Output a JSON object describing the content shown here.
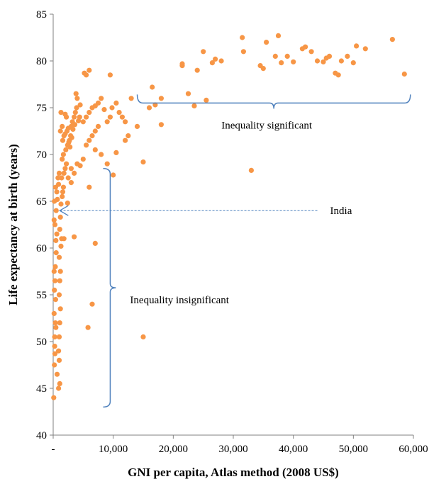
{
  "chart_data": {
    "type": "scatter",
    "xlabel": "GNI per capita, Atlas method (2008 US$)",
    "ylabel": "Life expectancy at birth (years)",
    "xlim": [
      0,
      60000
    ],
    "ylim": [
      40,
      85
    ],
    "x_ticks": [
      0,
      10000,
      20000,
      30000,
      40000,
      50000,
      60000
    ],
    "x_tick_labels": [
      "-",
      "10,000",
      "20,000",
      "30,000",
      "40,000",
      "50,000",
      "60,000"
    ],
    "y_ticks": [
      40,
      45,
      50,
      55,
      60,
      65,
      70,
      75,
      80,
      85
    ],
    "y_tick_labels": [
      "40",
      "45",
      "50",
      "55",
      "60",
      "65",
      "70",
      "75",
      "80",
      "85"
    ],
    "grid": false,
    "point_color": "#F79646",
    "annotation_color": "#4F81BD",
    "points": [
      [
        100,
        44
      ],
      [
        200,
        47.5
      ],
      [
        300,
        48.7
      ],
      [
        250,
        50.5
      ],
      [
        350,
        52
      ],
      [
        150,
        53
      ],
      [
        400,
        54.5
      ],
      [
        200,
        55.5
      ],
      [
        300,
        56.5
      ],
      [
        150,
        57.5
      ],
      [
        350,
        58
      ],
      [
        500,
        59.5
      ],
      [
        450,
        60.8
      ],
      [
        600,
        61.5
      ],
      [
        300,
        62.5
      ],
      [
        500,
        64
      ],
      [
        700,
        65.2
      ],
      [
        600,
        66
      ],
      [
        900,
        66.8
      ],
      [
        800,
        67.5
      ],
      [
        1000,
        68
      ],
      [
        200,
        65
      ],
      [
        400,
        66.5
      ],
      [
        150,
        63
      ],
      [
        250,
        49.5
      ],
      [
        450,
        51.5
      ],
      [
        650,
        46.5
      ],
      [
        900,
        45
      ],
      [
        1100,
        45.5
      ],
      [
        1000,
        48
      ],
      [
        900,
        49
      ],
      [
        1000,
        50.5
      ],
      [
        1100,
        52
      ],
      [
        1200,
        53.5
      ],
      [
        1000,
        55
      ],
      [
        1100,
        56.5
      ],
      [
        1200,
        57.5
      ],
      [
        1000,
        59
      ],
      [
        1300,
        60.2
      ],
      [
        1400,
        61
      ],
      [
        1100,
        62
      ],
      [
        1200,
        63.3
      ],
      [
        1300,
        64.7
      ],
      [
        1500,
        65.5
      ],
      [
        1600,
        66
      ],
      [
        1700,
        66.5
      ],
      [
        1400,
        67.5
      ],
      [
        1800,
        68
      ],
      [
        2000,
        68.5
      ],
      [
        2200,
        69
      ],
      [
        1500,
        69.5
      ],
      [
        1700,
        70
      ],
      [
        2100,
        70.5
      ],
      [
        2400,
        71
      ],
      [
        1600,
        71.5
      ],
      [
        1800,
        72
      ],
      [
        2000,
        72.2
      ],
      [
        2300,
        72.5
      ],
      [
        2500,
        72.8
      ],
      [
        2700,
        71.5
      ],
      [
        2900,
        72
      ],
      [
        3000,
        73
      ],
      [
        3200,
        73.5
      ],
      [
        3500,
        74
      ],
      [
        3700,
        74.5
      ],
      [
        3900,
        75
      ],
      [
        4000,
        76
      ],
      [
        3800,
        76.5
      ],
      [
        4500,
        75.3
      ],
      [
        2600,
        71.3
      ],
      [
        2800,
        70.8
      ],
      [
        3100,
        71.8
      ],
      [
        3300,
        72.7
      ],
      [
        3600,
        73.2
      ],
      [
        4200,
        73.6
      ],
      [
        4400,
        74
      ],
      [
        1200,
        72.5
      ],
      [
        1500,
        73
      ],
      [
        2200,
        74
      ],
      [
        2000,
        74.3
      ],
      [
        1300,
        74.5
      ],
      [
        2500,
        67.5
      ],
      [
        3000,
        68.5
      ],
      [
        3500,
        68
      ],
      [
        4000,
        69
      ],
      [
        4500,
        68.8
      ],
      [
        5000,
        69.5
      ],
      [
        3000,
        67
      ],
      [
        2400,
        64.8
      ],
      [
        1800,
        61
      ],
      [
        3500,
        61.2
      ],
      [
        7000,
        60.5
      ],
      [
        5500,
        71
      ],
      [
        6000,
        71.5
      ],
      [
        6500,
        72
      ],
      [
        7000,
        72.5
      ],
      [
        7500,
        73
      ],
      [
        5000,
        73.5
      ],
      [
        5500,
        74
      ],
      [
        6000,
        74.5
      ],
      [
        6500,
        75
      ],
      [
        7000,
        75.2
      ],
      [
        7500,
        75.5
      ],
      [
        8000,
        76
      ],
      [
        8500,
        74.8
      ],
      [
        9000,
        73.5
      ],
      [
        9500,
        74
      ],
      [
        9800,
        75
      ],
      [
        10500,
        75.5
      ],
      [
        11000,
        74.5
      ],
      [
        11500,
        74
      ],
      [
        12000,
        73.5
      ],
      [
        12500,
        72
      ],
      [
        12000,
        71.5
      ],
      [
        13000,
        76
      ],
      [
        14000,
        73
      ],
      [
        10000,
        67.8
      ],
      [
        10500,
        70.2
      ],
      [
        9000,
        69
      ],
      [
        8000,
        70
      ],
      [
        7000,
        70.5
      ],
      [
        6000,
        66.5
      ],
      [
        9500,
        78.5
      ],
      [
        6000,
        79
      ],
      [
        5500,
        78.5
      ],
      [
        5200,
        78.7
      ],
      [
        15000,
        69.2
      ],
      [
        16000,
        75
      ],
      [
        17000,
        75.3
      ],
      [
        18000,
        73.2
      ],
      [
        16500,
        77.2
      ],
      [
        18000,
        76
      ],
      [
        15000,
        50.5
      ],
      [
        5800,
        51.5
      ],
      [
        6500,
        54
      ],
      [
        21500,
        79.5
      ],
      [
        21500,
        79.7
      ],
      [
        22500,
        76.5
      ],
      [
        23500,
        75.2
      ],
      [
        24000,
        79
      ],
      [
        25000,
        81
      ],
      [
        25500,
        75.8
      ],
      [
        26500,
        79.8
      ],
      [
        27000,
        80.2
      ],
      [
        28000,
        80
      ],
      [
        31500,
        82.5
      ],
      [
        31700,
        81
      ],
      [
        33000,
        68.3
      ],
      [
        34500,
        79.5
      ],
      [
        35000,
        79.2
      ],
      [
        35500,
        82
      ],
      [
        37000,
        80.5
      ],
      [
        37500,
        82.7
      ],
      [
        38000,
        79.8
      ],
      [
        39000,
        80.5
      ],
      [
        40000,
        79.9
      ],
      [
        41500,
        81.3
      ],
      [
        42000,
        81.5
      ],
      [
        43000,
        81
      ],
      [
        44000,
        80
      ],
      [
        45000,
        79.9
      ],
      [
        45500,
        80.3
      ],
      [
        46000,
        80.5
      ],
      [
        47000,
        78.7
      ],
      [
        47500,
        78.5
      ],
      [
        48000,
        80
      ],
      [
        49000,
        80.5
      ],
      [
        50000,
        79.8
      ],
      [
        50500,
        81.6
      ],
      [
        52000,
        81.3
      ],
      [
        56500,
        82.3
      ],
      [
        58500,
        78.6
      ]
    ],
    "annotations": [
      {
        "type": "brace",
        "label": "Inequality significant",
        "x_range": [
          14000,
          59500
        ],
        "y": 75.5
      },
      {
        "type": "brace",
        "label": "Inequality insignificant",
        "x": 9500,
        "y_range": [
          43,
          68.5
        ]
      },
      {
        "type": "arrow",
        "label": "India",
        "from": [
          44000,
          64
        ],
        "to": [
          1100,
          64
        ]
      }
    ]
  }
}
